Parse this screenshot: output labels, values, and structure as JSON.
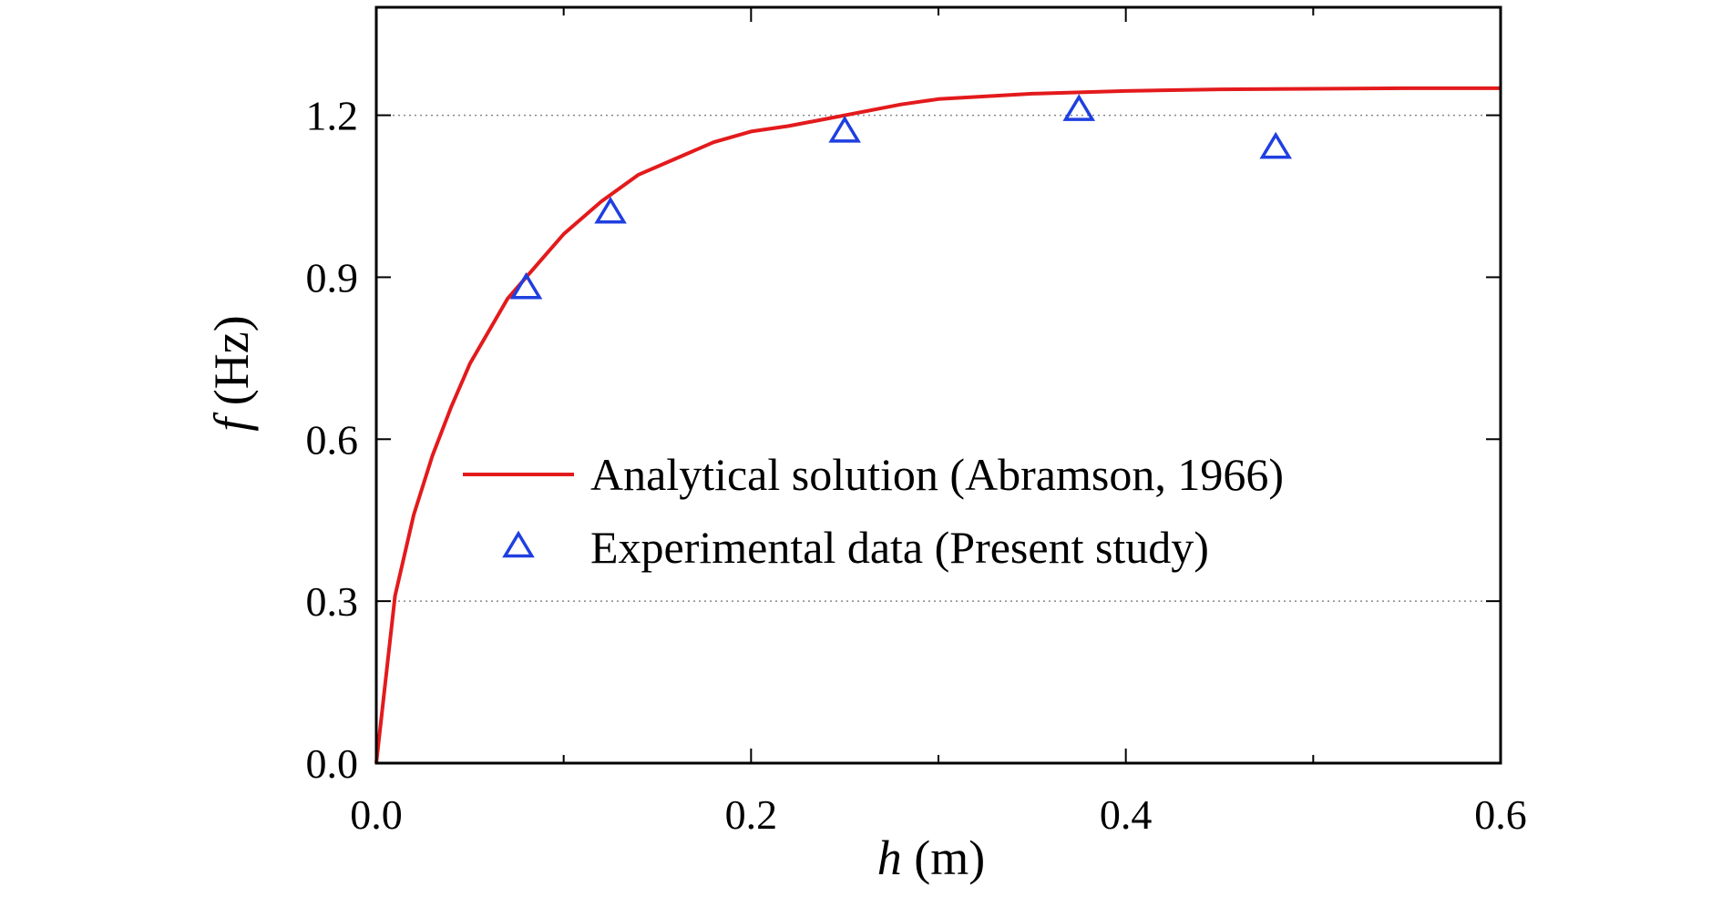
{
  "chart_data": {
    "type": "line",
    "xlabel": {
      "symbol": "h",
      "unit": "(m)"
    },
    "ylabel": {
      "symbol": "f",
      "unit": "(Hz)"
    },
    "xlim": [
      0.0,
      0.6
    ],
    "ylim": [
      0.0,
      1.4
    ],
    "xticks": [
      0.0,
      0.2,
      0.4,
      0.6
    ],
    "xtick_labels": [
      "0.0",
      "0.2",
      "0.4",
      "0.6"
    ],
    "xminor_ticks": [
      0.1,
      0.3,
      0.5
    ],
    "yticks": [
      0.0,
      0.3,
      0.6,
      0.9,
      1.2
    ],
    "ytick_labels": [
      "0.0",
      "0.3",
      "0.6",
      "0.9",
      "1.2"
    ],
    "grid_dotted_y": [
      0.3,
      1.2
    ],
    "legend_position": "center-right",
    "series": [
      {
        "name": "Analytical solution (Abramson, 1966)",
        "kind": "line",
        "color": "#e31a1c",
        "x": [
          0.0,
          0.01,
          0.02,
          0.03,
          0.04,
          0.05,
          0.06,
          0.07,
          0.08,
          0.09,
          0.1,
          0.12,
          0.14,
          0.16,
          0.18,
          0.2,
          0.22,
          0.25,
          0.28,
          0.3,
          0.35,
          0.4,
          0.45,
          0.5,
          0.55,
          0.6
        ],
        "y": [
          0.0,
          0.31,
          0.46,
          0.57,
          0.66,
          0.74,
          0.8,
          0.86,
          0.9,
          0.94,
          0.98,
          1.04,
          1.09,
          1.12,
          1.15,
          1.17,
          1.18,
          1.2,
          1.22,
          1.23,
          1.24,
          1.245,
          1.248,
          1.249,
          1.25,
          1.25
        ]
      },
      {
        "name": "Experimental data (Present study)",
        "kind": "scatter",
        "marker": "triangle-open",
        "color": "#1f3fe0",
        "x": [
          0.08,
          0.125,
          0.25,
          0.375,
          0.48
        ],
        "y": [
          0.88,
          1.02,
          1.17,
          1.21,
          1.14
        ]
      }
    ]
  }
}
